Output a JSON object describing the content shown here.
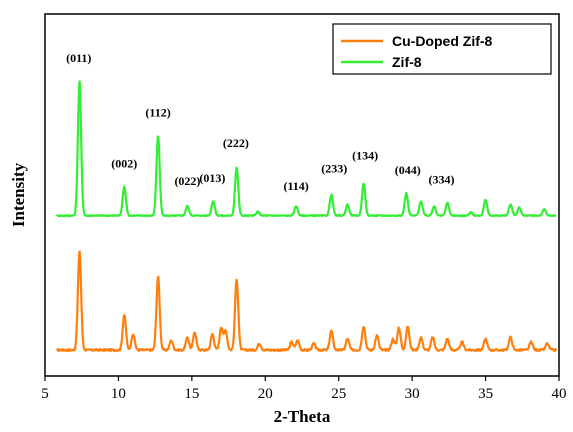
{
  "chart_data": {
    "type": "line",
    "xlabel": "2-Theta",
    "ylabel": "Intensity",
    "xlim": [
      5,
      40
    ],
    "xticks": [
      5,
      10,
      15,
      20,
      25,
      30,
      35,
      40
    ],
    "y_ticks_shown": false,
    "grid": false,
    "legend_position": "top-right",
    "series": [
      {
        "name": "Cu-Doped Zif-8",
        "color": "#ff7f0e",
        "baseline": 0,
        "noise": 0.03,
        "peaks": [
          [
            7.35,
            3.1
          ],
          [
            10.4,
            1.1
          ],
          [
            11.0,
            0.5
          ],
          [
            12.7,
            2.3
          ],
          [
            13.6,
            0.3
          ],
          [
            14.7,
            0.4
          ],
          [
            15.2,
            0.55
          ],
          [
            16.4,
            0.5
          ],
          [
            17.0,
            0.7
          ],
          [
            17.3,
            0.6
          ],
          [
            18.05,
            2.2
          ],
          [
            19.6,
            0.2
          ],
          [
            21.8,
            0.25
          ],
          [
            22.2,
            0.3
          ],
          [
            23.3,
            0.2
          ],
          [
            24.5,
            0.6
          ],
          [
            25.6,
            0.35
          ],
          [
            26.7,
            0.75
          ],
          [
            27.6,
            0.45
          ],
          [
            28.7,
            0.35
          ],
          [
            29.1,
            0.7
          ],
          [
            29.7,
            0.75
          ],
          [
            30.6,
            0.4
          ],
          [
            31.4,
            0.4
          ],
          [
            32.4,
            0.35
          ],
          [
            33.4,
            0.25
          ],
          [
            35.0,
            0.35
          ],
          [
            36.7,
            0.4
          ],
          [
            38.1,
            0.25
          ],
          [
            39.2,
            0.2
          ]
        ]
      },
      {
        "name": "Zif-8",
        "color": "#33ee33",
        "baseline": 4.2,
        "noise": 0.015,
        "peaks": [
          [
            7.35,
            4.2
          ],
          [
            10.4,
            0.9
          ],
          [
            12.7,
            2.5
          ],
          [
            14.7,
            0.3
          ],
          [
            16.45,
            0.45
          ],
          [
            18.05,
            1.5
          ],
          [
            19.5,
            0.12
          ],
          [
            22.1,
            0.3
          ],
          [
            24.5,
            0.65
          ],
          [
            25.6,
            0.35
          ],
          [
            26.7,
            1.0
          ],
          [
            29.6,
            0.7
          ],
          [
            30.6,
            0.45
          ],
          [
            31.5,
            0.3
          ],
          [
            32.4,
            0.4
          ],
          [
            34.0,
            0.1
          ],
          [
            35.0,
            0.5
          ],
          [
            36.7,
            0.35
          ],
          [
            37.3,
            0.25
          ],
          [
            39.0,
            0.2
          ]
        ]
      }
    ],
    "annotations": [
      {
        "text": "(011)",
        "x": 7.3,
        "y": 9.0
      },
      {
        "text": "(002)",
        "x": 10.4,
        "y": 5.7
      },
      {
        "text": "(112)",
        "x": 12.7,
        "y": 7.3
      },
      {
        "text": "(022)",
        "x": 14.7,
        "y": 5.15
      },
      {
        "text": "(013)",
        "x": 16.4,
        "y": 5.25
      },
      {
        "text": "(222)",
        "x": 18.0,
        "y": 6.35
      },
      {
        "text": "(114)",
        "x": 22.1,
        "y": 5.0
      },
      {
        "text": "(233)",
        "x": 24.7,
        "y": 5.55
      },
      {
        "text": "(134)",
        "x": 26.8,
        "y": 5.95
      },
      {
        "text": "(044)",
        "x": 29.7,
        "y": 5.5
      },
      {
        "text": "(334)",
        "x": 32.0,
        "y": 5.2
      }
    ]
  }
}
